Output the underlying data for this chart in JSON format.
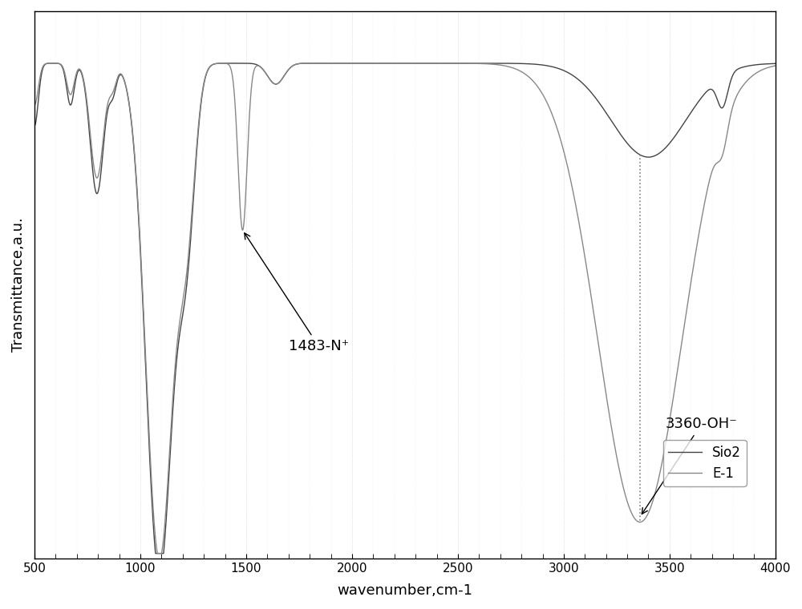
{
  "xlim": [
    500,
    4000
  ],
  "xlabel": "wavenumber,cm-1",
  "ylabel": "Transmittance,a.u.",
  "legend_labels": [
    "Sio2",
    "E-1"
  ],
  "sio2_color": "#444444",
  "e1_color": "#888888",
  "background_color": "#ffffff",
  "grid_color": "#cccccc",
  "annotation_1483": "1483-N⁺",
  "annotation_3360": "3360-OH⁻",
  "xticks": [
    500,
    1000,
    1500,
    2000,
    2500,
    3000,
    3500,
    4000
  ]
}
